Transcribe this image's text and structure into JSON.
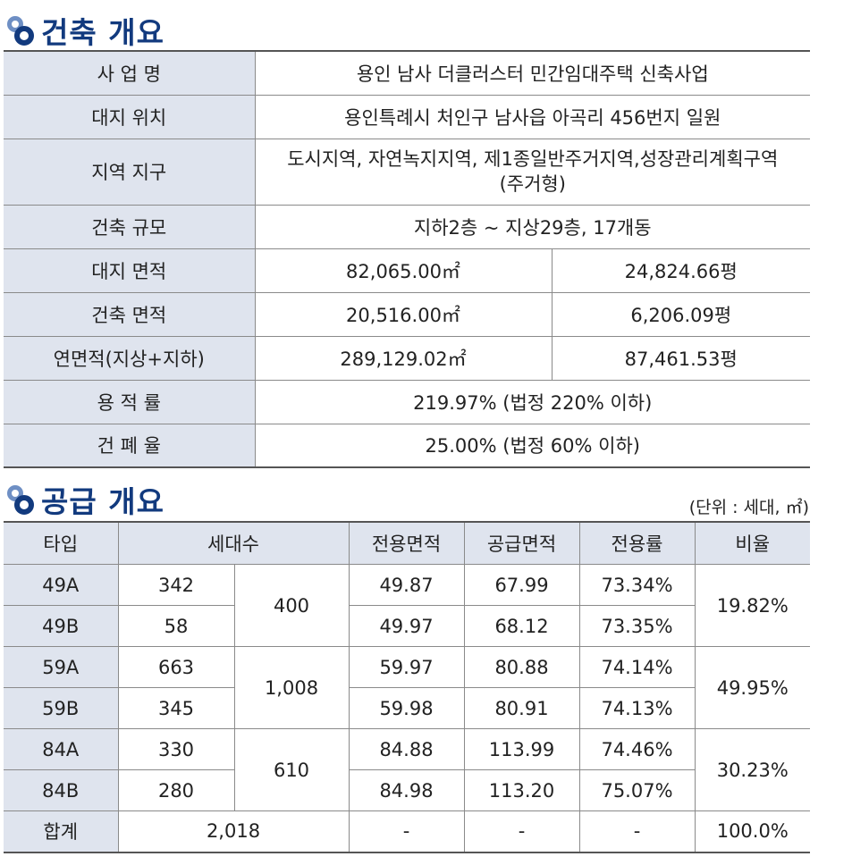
{
  "building_section": {
    "title": "건축 개요",
    "rows": {
      "business_name": {
        "label": "사 업 명",
        "value": "용인 남사 더클러스터 민간임대주택 신축사업"
      },
      "site_location": {
        "label": "대지 위치",
        "value": "용인특례시 처인구 남사읍 아곡리 456번지 일원"
      },
      "zoning": {
        "label": "지역 지구",
        "value_line1": "도시지역, 자연녹지지역, 제1종일반주거지역,성장관리계획구역",
        "value_line2": "(주거형)"
      },
      "scale": {
        "label": "건축 규모",
        "value": "지하2층 ~ 지상29층, 17개동"
      },
      "site_area": {
        "label": "대지 면적",
        "sqm": "82,065.00㎡",
        "pyeong": "24,824.66평"
      },
      "building_area": {
        "label": "건축 면적",
        "sqm": "20,516.00㎡",
        "pyeong": "6,206.09평"
      },
      "total_floor_area": {
        "label": "연면적(지상+지하)",
        "sqm": "289,129.02㎡",
        "pyeong": "87,461.53평"
      },
      "far": {
        "label": "용 적 률",
        "value": "219.97% (법정 220% 이하)"
      },
      "bcr": {
        "label": "건 폐 율",
        "value": "25.00% (법정 60% 이하)"
      }
    }
  },
  "supply_section": {
    "title": "공급 개요",
    "unit_note": "(단위 : 세대, ㎡)",
    "headers": {
      "type": "타입",
      "households": "세대수",
      "exclusive_area": "전용면적",
      "supply_area": "공급면적",
      "exclusive_ratio": "전용률",
      "share": "비율"
    },
    "rows": [
      {
        "type": "49A",
        "households": "342",
        "group_total": "400",
        "exclusive": "49.87",
        "supply": "67.99",
        "ratio": "73.34%",
        "share": "19.82%"
      },
      {
        "type": "49B",
        "households": "58",
        "exclusive": "49.97",
        "supply": "68.12",
        "ratio": "73.35%"
      },
      {
        "type": "59A",
        "households": "663",
        "group_total": "1,008",
        "exclusive": "59.97",
        "supply": "80.88",
        "ratio": "74.14%",
        "share": "49.95%"
      },
      {
        "type": "59B",
        "households": "345",
        "exclusive": "59.98",
        "supply": "80.91",
        "ratio": "74.13%"
      },
      {
        "type": "84A",
        "households": "330",
        "group_total": "610",
        "exclusive": "84.88",
        "supply": "113.99",
        "ratio": "74.46%",
        "share": "30.23%"
      },
      {
        "type": "84B",
        "households": "280",
        "exclusive": "84.98",
        "supply": "113.20",
        "ratio": "75.07%"
      }
    ],
    "total": {
      "label": "합계",
      "households": "2,018",
      "exclusive": "-",
      "supply": "-",
      "ratio": "-",
      "share": "100.0%"
    }
  }
}
